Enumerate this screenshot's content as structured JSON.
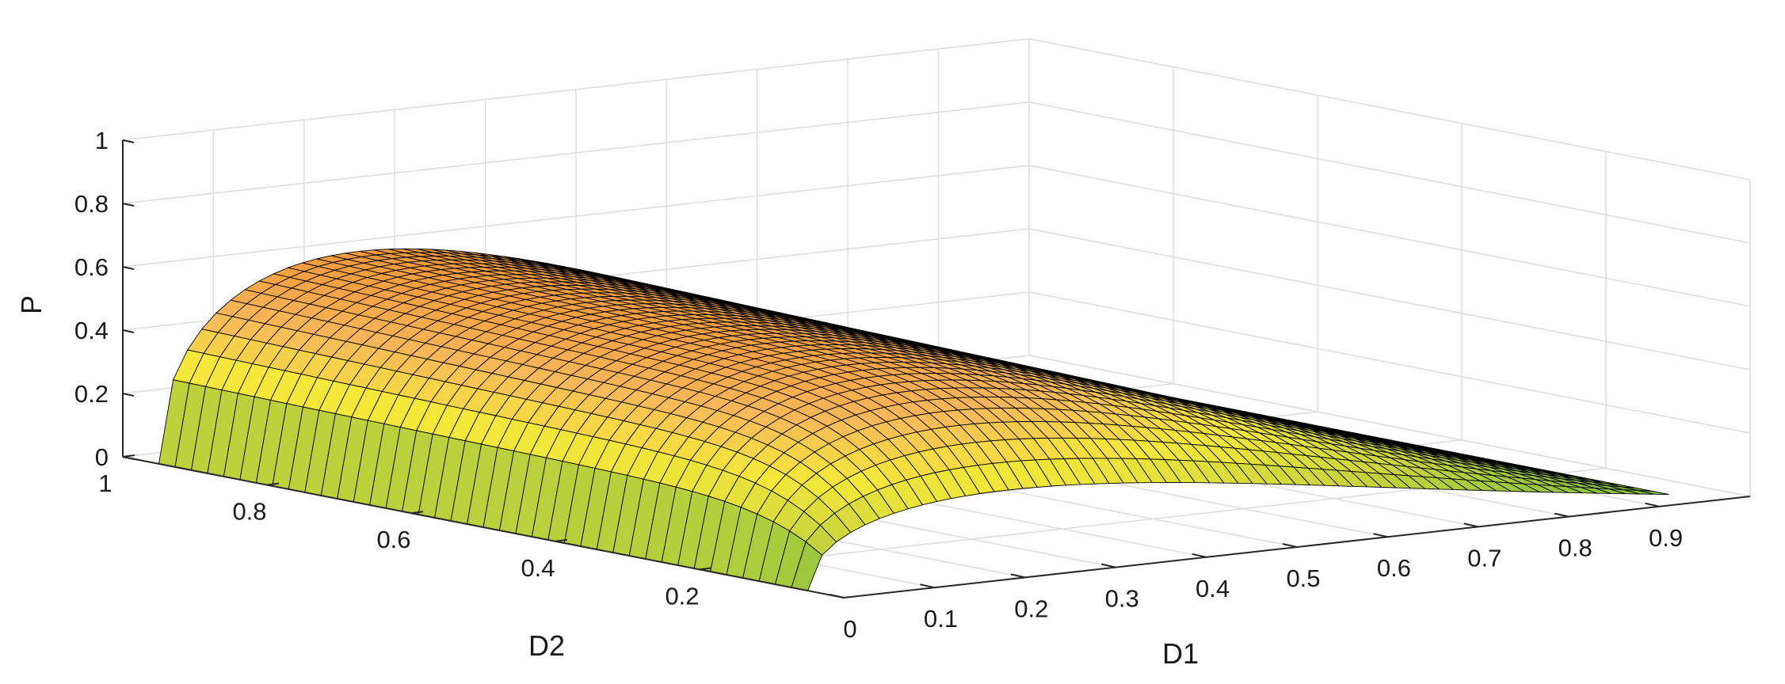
{
  "chart_data": {
    "type": "surface",
    "xlabel": "D1",
    "ylabel": "D2",
    "zlabel": "P",
    "xlim": [
      0,
      1
    ],
    "ylim": [
      0,
      1
    ],
    "zlim": [
      0,
      1
    ],
    "x_ticks": [
      "0",
      "0.1",
      "0.2",
      "0.3",
      "0.4",
      "0.5",
      "0.6",
      "0.7",
      "0.8",
      "0.9"
    ],
    "y_ticks": [
      "0.2",
      "0.4",
      "0.6",
      "0.8",
      "1"
    ],
    "z_ticks": [
      "0",
      "0.2",
      "0.4",
      "0.6",
      "0.8",
      "1"
    ],
    "x_tick_values": [
      0,
      0.1,
      0.2,
      0.3,
      0.4,
      0.5,
      0.6,
      0.7,
      0.8,
      0.9
    ],
    "y_tick_values": [
      0.2,
      0.4,
      0.6,
      0.8,
      1
    ],
    "z_tick_values": [
      0,
      0.2,
      0.4,
      0.6,
      0.8,
      1
    ],
    "grid": true,
    "surface": {
      "x_range": [
        0,
        0.95
      ],
      "y_range": [
        0.05,
        0.95
      ],
      "samples": {
        "D1": [
          0,
          0.2,
          0.4,
          0.6,
          0.8,
          0.95
        ],
        "D2_0.5": [
          0,
          0.56,
          0.54,
          0.35,
          0.14,
          0.03
        ],
        "D2_0.95": [
          0,
          0.6,
          0.58,
          0.38,
          0.16,
          0.04
        ]
      },
      "edge_color": "#000000",
      "colormap": [
        "#7fbf3f",
        "#c7d43c",
        "#f5e83a",
        "#f7b85a",
        "#f49a3c"
      ]
    }
  }
}
